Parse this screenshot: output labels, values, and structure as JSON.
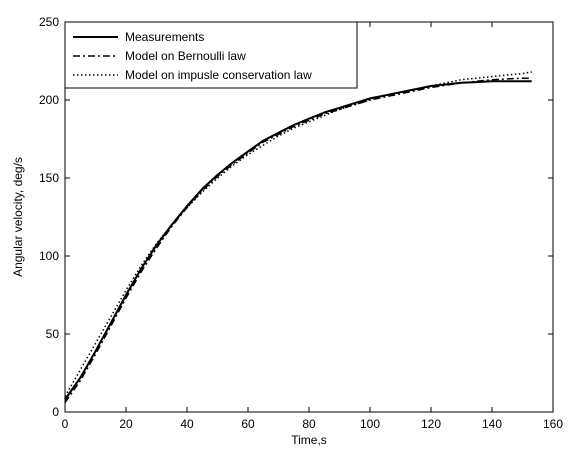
{
  "chart_data": {
    "type": "line",
    "title": "",
    "xlabel": "Time,s",
    "ylabel": "Angular velocity, deg/s",
    "xlim": [
      0,
      160
    ],
    "ylim": [
      0,
      250
    ],
    "xticks": [
      0,
      20,
      40,
      60,
      80,
      100,
      120,
      140,
      160
    ],
    "yticks": [
      0,
      50,
      100,
      150,
      200,
      250
    ],
    "grid": false,
    "legend": {
      "position": "top-left"
    },
    "series": [
      {
        "name": "Measurements",
        "style": "solid",
        "x": [
          0,
          5,
          10,
          15,
          20,
          25,
          30,
          35,
          40,
          45,
          50,
          55,
          60,
          65,
          70,
          75,
          80,
          85,
          90,
          95,
          100,
          105,
          110,
          115,
          120,
          125,
          130,
          135,
          140,
          145,
          150,
          153
        ],
        "y": [
          8,
          22,
          39,
          57,
          75,
          92,
          107,
          120,
          132,
          143,
          152,
          160,
          167,
          174,
          179,
          184,
          188,
          192,
          195,
          198,
          201,
          203,
          205,
          207,
          209,
          210,
          211,
          211.5,
          212,
          212,
          212,
          212
        ]
      },
      {
        "name": "Model on Bernoulli law",
        "style": "dashdot",
        "x": [
          0,
          5,
          10,
          15,
          20,
          25,
          30,
          35,
          40,
          45,
          50,
          55,
          60,
          65,
          70,
          75,
          80,
          85,
          90,
          95,
          100,
          105,
          110,
          115,
          120,
          125,
          130,
          135,
          140,
          145,
          150,
          153
        ],
        "y": [
          6,
          20,
          37,
          55,
          73,
          90,
          105,
          119,
          131,
          142,
          151,
          159,
          166,
          173,
          178,
          183,
          187,
          191,
          194,
          197,
          200,
          202,
          204,
          206,
          208,
          209.5,
          211,
          212,
          213,
          213.5,
          214,
          214
        ]
      },
      {
        "name": "Model on impusle conservation law",
        "style": "dotted",
        "x": [
          0,
          5,
          10,
          15,
          20,
          25,
          30,
          35,
          40,
          45,
          50,
          55,
          60,
          65,
          70,
          75,
          80,
          85,
          90,
          95,
          100,
          105,
          110,
          115,
          120,
          125,
          130,
          135,
          140,
          145,
          150,
          153
        ],
        "y": [
          10,
          27,
          44,
          61,
          78,
          94,
          108,
          120,
          131,
          141,
          150,
          158,
          165,
          171,
          177,
          182,
          186,
          190,
          194,
          197,
          200,
          203,
          205,
          207,
          209,
          211,
          213,
          214,
          215,
          216,
          217,
          218
        ]
      }
    ]
  }
}
